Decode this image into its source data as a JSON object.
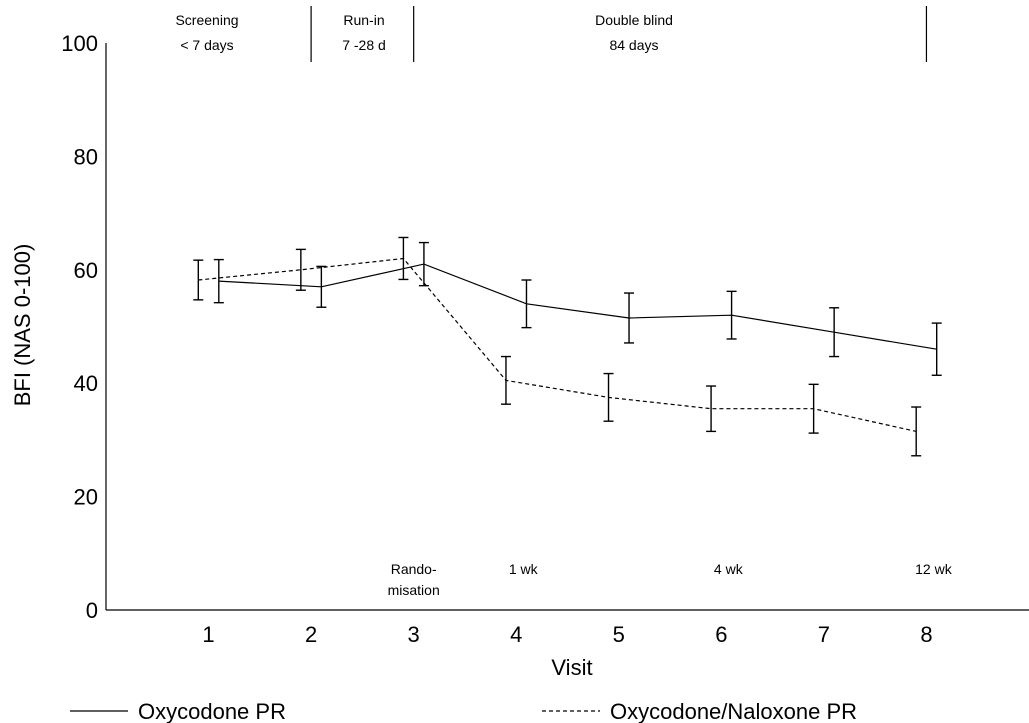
{
  "chart_data": {
    "type": "line",
    "xlabel": "Visit",
    "ylabel": "BFI (NAS 0-100)",
    "x": [
      1,
      2,
      3,
      4,
      5,
      6,
      7,
      8
    ],
    "xlim": [
      0,
      9
    ],
    "ylim": [
      0,
      100
    ],
    "yticks": [
      0,
      20,
      40,
      60,
      80,
      100
    ],
    "grid": false,
    "legend_position": "bottom",
    "series": [
      {
        "name": "Oxycodone PR",
        "style": "solid",
        "x": [
          1.1,
          2.1,
          3.1,
          4.1,
          5.1,
          6.1,
          7.1,
          8.1
        ],
        "y": [
          58,
          57,
          61,
          54,
          51.5,
          52,
          49,
          46
        ],
        "error": [
          3.8,
          3.6,
          3.8,
          4.2,
          4.4,
          4.2,
          4.3,
          4.6
        ]
      },
      {
        "name": "Oxycodone/Naloxone PR",
        "style": "dashed",
        "x": [
          0.9,
          1.9,
          2.9,
          3.9,
          4.9,
          5.9,
          6.9,
          7.9
        ],
        "y": [
          58.2,
          60,
          62,
          40.5,
          37.5,
          35.5,
          35.5,
          31.5
        ],
        "error": [
          3.5,
          3.6,
          3.7,
          4.2,
          4.2,
          4.0,
          4.3,
          4.3
        ]
      }
    ],
    "phases": [
      {
        "line1": "Screening",
        "line2": "< 7 days"
      },
      {
        "line1": "Run-in",
        "line2": "7 -28 d"
      },
      {
        "line1": "Double blind",
        "line2": "84 days"
      }
    ],
    "phase_boundaries": [
      2.0,
      3.0,
      8.0
    ],
    "visit_notes": [
      {
        "visit": 3,
        "line1": "Rando-",
        "line2": "misation"
      },
      {
        "visit": 4,
        "line1": "1 wk",
        "line2": ""
      },
      {
        "visit": 6,
        "line1": "4 wk",
        "line2": ""
      },
      {
        "visit": 8,
        "line1": "12 wk",
        "line2": ""
      }
    ]
  }
}
